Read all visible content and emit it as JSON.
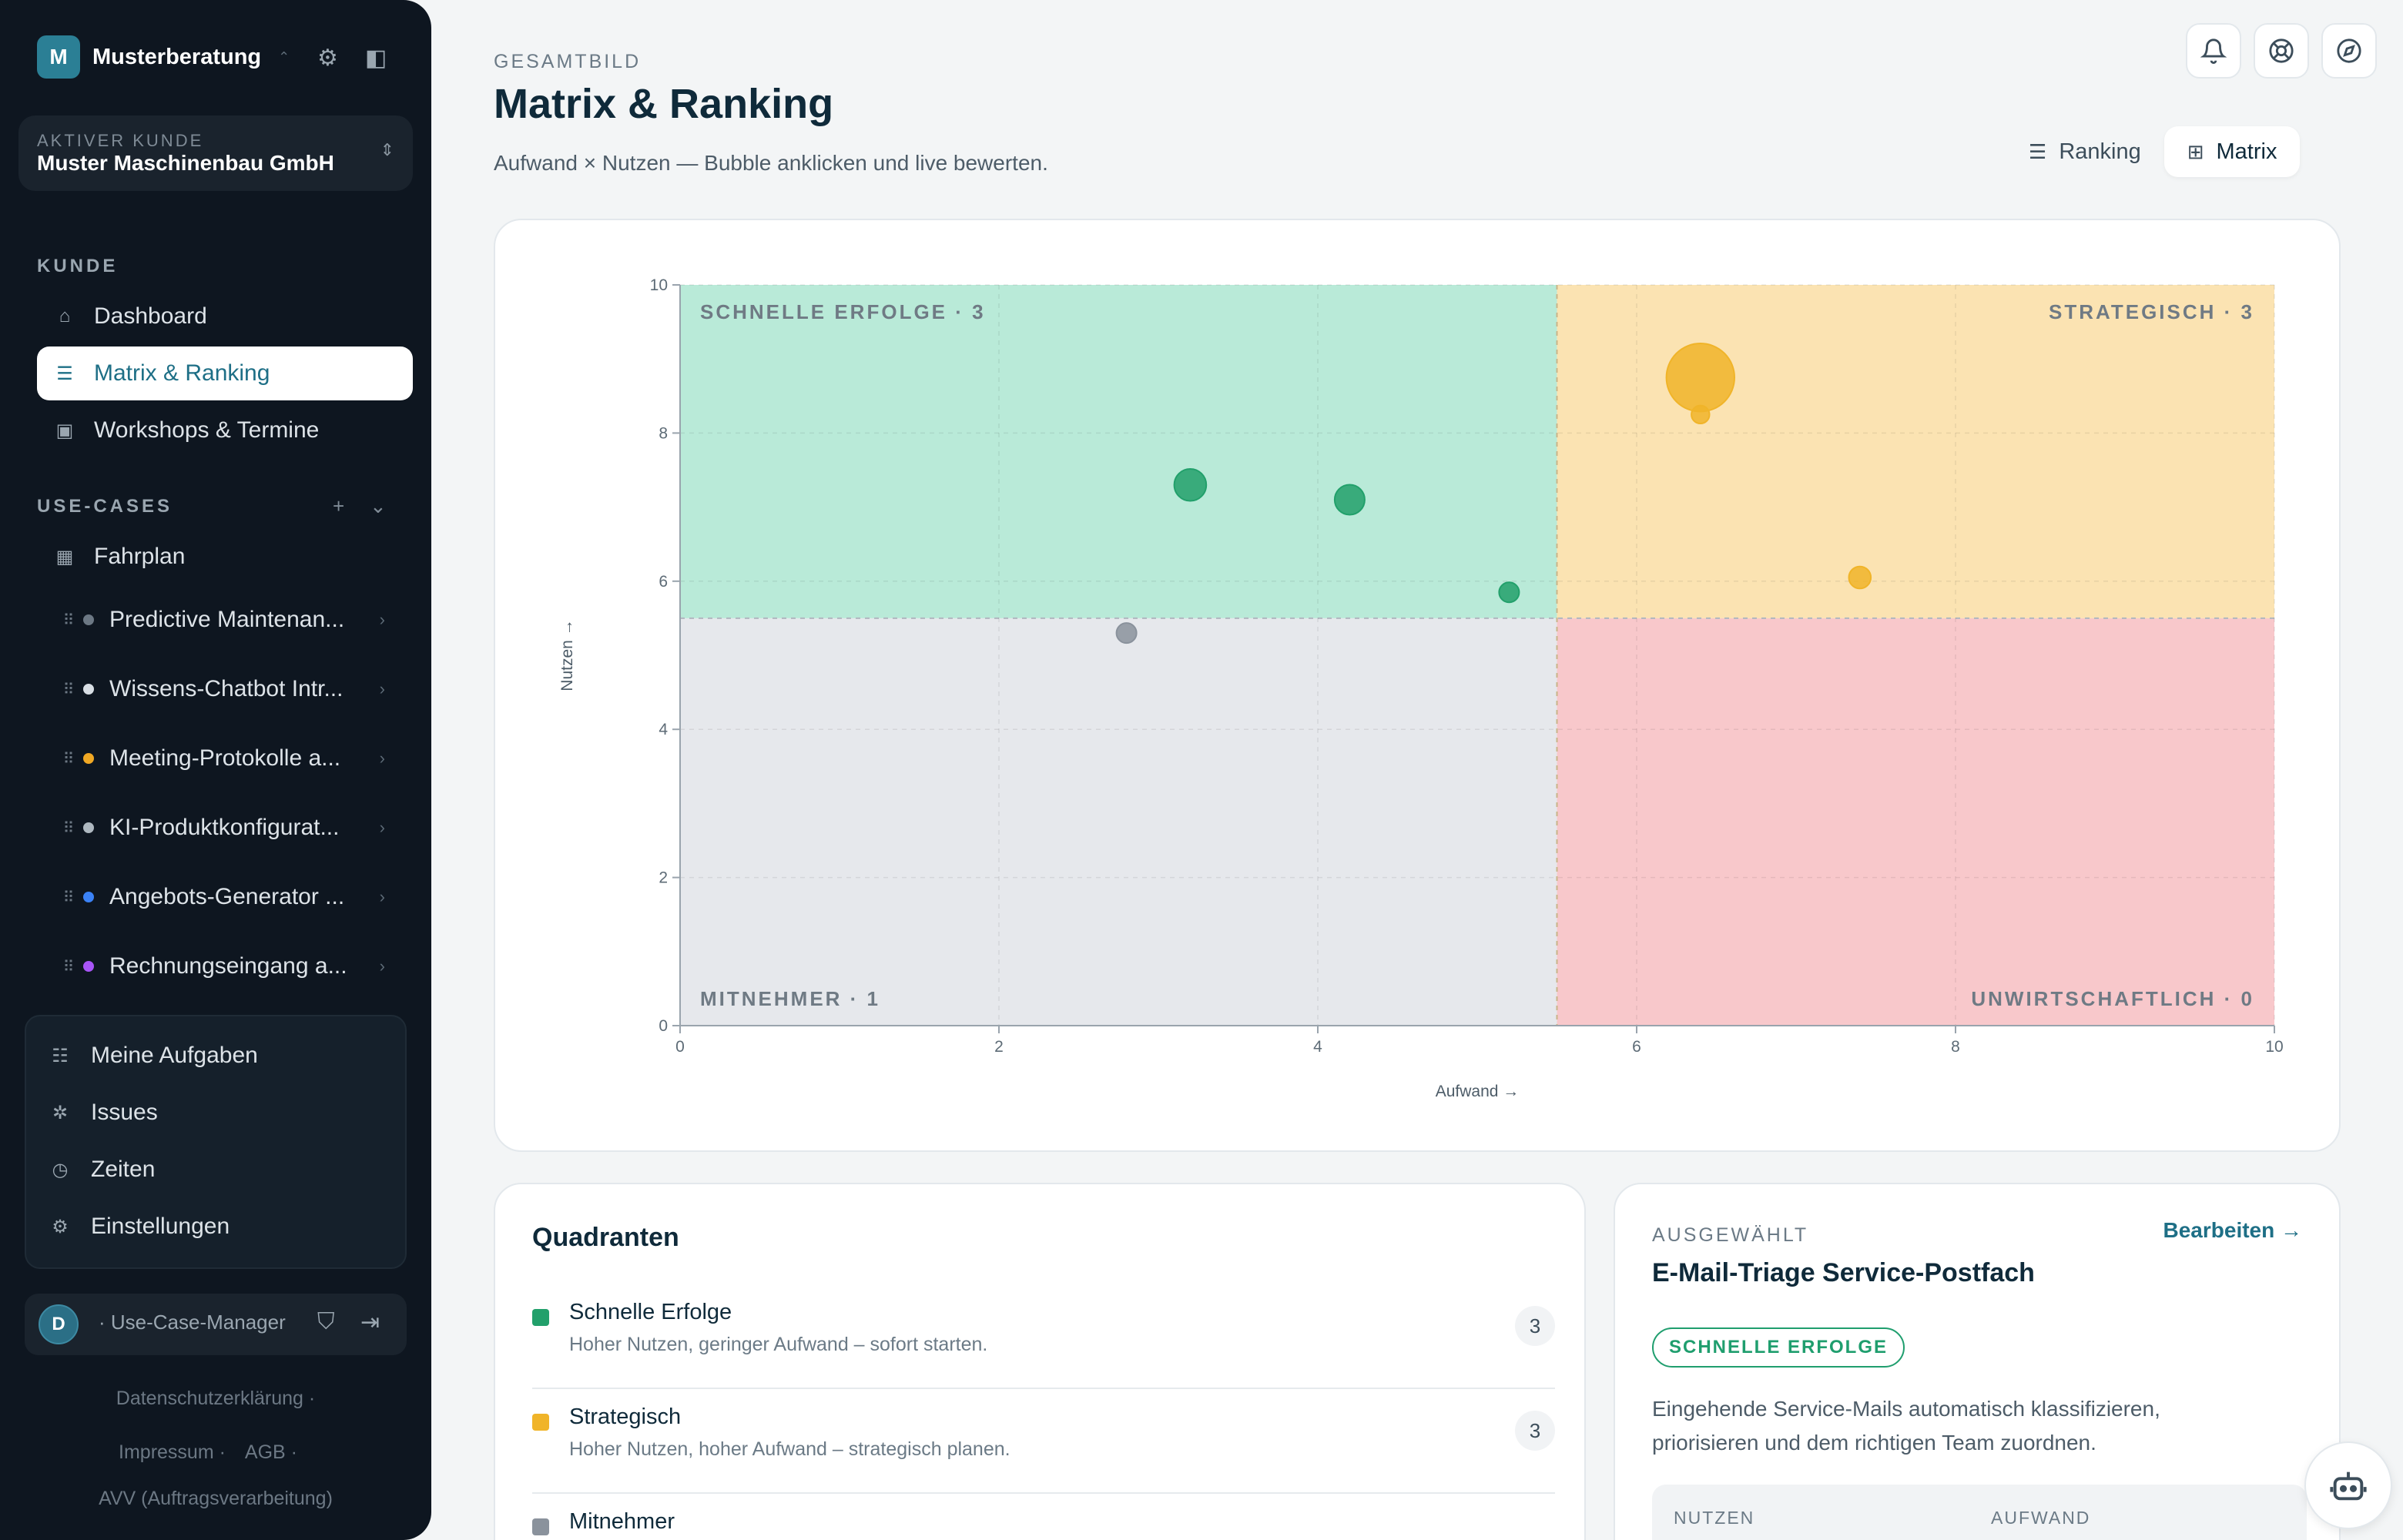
{
  "org": {
    "initial": "M",
    "name": "Musterberatung"
  },
  "customer": {
    "label": "AKTIVER KUNDE",
    "name": "Muster Maschinenbau GmbH"
  },
  "nav_section_kunde": "KUNDE",
  "nav_kunde": [
    {
      "label": "Dashboard",
      "icon": "home-icon"
    },
    {
      "label": "Matrix & Ranking",
      "icon": "list-icon",
      "active": true
    },
    {
      "label": "Workshops & Termine",
      "icon": "calendar-clock-icon"
    }
  ],
  "nav_section_usecases": "USE-CASES",
  "fahrplan": "Fahrplan",
  "usecases": [
    {
      "label": "Predictive Maintenan...",
      "color": "#9aa6b0"
    },
    {
      "label": "Wissens-Chatbot Intr...",
      "color": "#d8dee4"
    },
    {
      "label": "Meeting-Protokolle a...",
      "color": "#f0a824"
    },
    {
      "label": "KI-Produktkonfigurat...",
      "color": "#aeb8c0"
    },
    {
      "label": "Angebots-Generator ...",
      "color": "#3b82f6"
    },
    {
      "label": "Rechnungseingang a...",
      "color": "#a855f7"
    }
  ],
  "bottom_nav": [
    {
      "label": "Meine Aufgaben",
      "icon": "tasks-icon"
    },
    {
      "label": "Issues",
      "icon": "bug-icon"
    },
    {
      "label": "Zeiten",
      "icon": "timer-icon"
    },
    {
      "label": "Einstellungen",
      "icon": "gear-icon"
    }
  ],
  "user": {
    "initial": "D",
    "role": "· Use-Case-Manager"
  },
  "footer": {
    "privacy": "Datenschutzerklärung ·",
    "imprint": "Impressum ·",
    "terms": "AGB ·",
    "avv": "AVV (Auftragsverarbeitung)"
  },
  "page": {
    "eyebrow": "GESAMTBILD",
    "title": "Matrix & Ranking",
    "subtitle": "Aufwand × Nutzen — Bubble anklicken und live bewerten."
  },
  "view_toggle": {
    "ranking": "Ranking",
    "matrix": "Matrix"
  },
  "chart_data": {
    "type": "scatter",
    "title": "",
    "xlabel": "Aufwand →",
    "ylabel": "Nutzen →",
    "xlim": [
      0,
      10
    ],
    "ylim": [
      0,
      10
    ],
    "xticks": [
      "0",
      "2",
      "4",
      "6",
      "8",
      "10"
    ],
    "yticks": [
      "0",
      "2",
      "4",
      "6",
      "8",
      "10"
    ],
    "grid": true,
    "quadrants": [
      {
        "label": "SCHNELLE ERFOLGE · 3",
        "x": [
          0,
          5.5
        ],
        "y": [
          5.5,
          10
        ],
        "color": "#b9ead8"
      },
      {
        "label": "STRATEGISCH · 3",
        "x": [
          5.5,
          10
        ],
        "y": [
          5.5,
          10
        ],
        "color": "#fbe3b2"
      },
      {
        "label": "MITNEHMER · 1",
        "x": [
          0,
          5.5
        ],
        "y": [
          0,
          5.5
        ],
        "color": "#e6e8ec"
      },
      {
        "label": "UNWIRTSCHAFTLICH · 0",
        "x": [
          5.5,
          10
        ],
        "y": [
          0,
          5.5
        ],
        "color": "#f8c8cb"
      }
    ],
    "points": [
      {
        "x": 3.2,
        "y": 7.3,
        "size": 1.6,
        "color": "#22a06b"
      },
      {
        "x": 4.2,
        "y": 7.1,
        "size": 1.5,
        "color": "#22a06b"
      },
      {
        "x": 5.2,
        "y": 5.85,
        "size": 1.0,
        "color": "#22a06b"
      },
      {
        "x": 2.8,
        "y": 5.3,
        "size": 1.0,
        "color": "#8a929c"
      },
      {
        "x": 6.4,
        "y": 8.75,
        "size": 3.4,
        "color": "#f0b429"
      },
      {
        "x": 6.4,
        "y": 8.25,
        "size": 0.9,
        "color": "#f0b429"
      },
      {
        "x": 7.4,
        "y": 6.05,
        "size": 1.1,
        "color": "#f0b429"
      }
    ]
  },
  "quadrant_list": {
    "title": "Quadranten",
    "items": [
      {
        "name": "Schnelle Erfolge",
        "desc": "Hoher Nutzen, geringer Aufwand – sofort starten.",
        "count": "3",
        "color": "#22a06b"
      },
      {
        "name": "Strategisch",
        "desc": "Hoher Nutzen, hoher Aufwand – strategisch planen.",
        "count": "3",
        "color": "#f0b429"
      },
      {
        "name": "Mitnehmer",
        "desc": "",
        "count": "",
        "color": "#8a929c"
      }
    ]
  },
  "selected": {
    "eyebrow": "AUSGEWÄHLT",
    "edit": "Bearbeiten →",
    "title": "E-Mail-Triage Service-Postfach",
    "badge": "SCHNELLE ERFOLGE",
    "description": "Eingehende Service-Mails automatisch klassifizieren, priorisieren und dem richtigen Team zuordnen.",
    "col_nutzen": "NUTZEN",
    "col_aufwand": "AUFWAND"
  }
}
